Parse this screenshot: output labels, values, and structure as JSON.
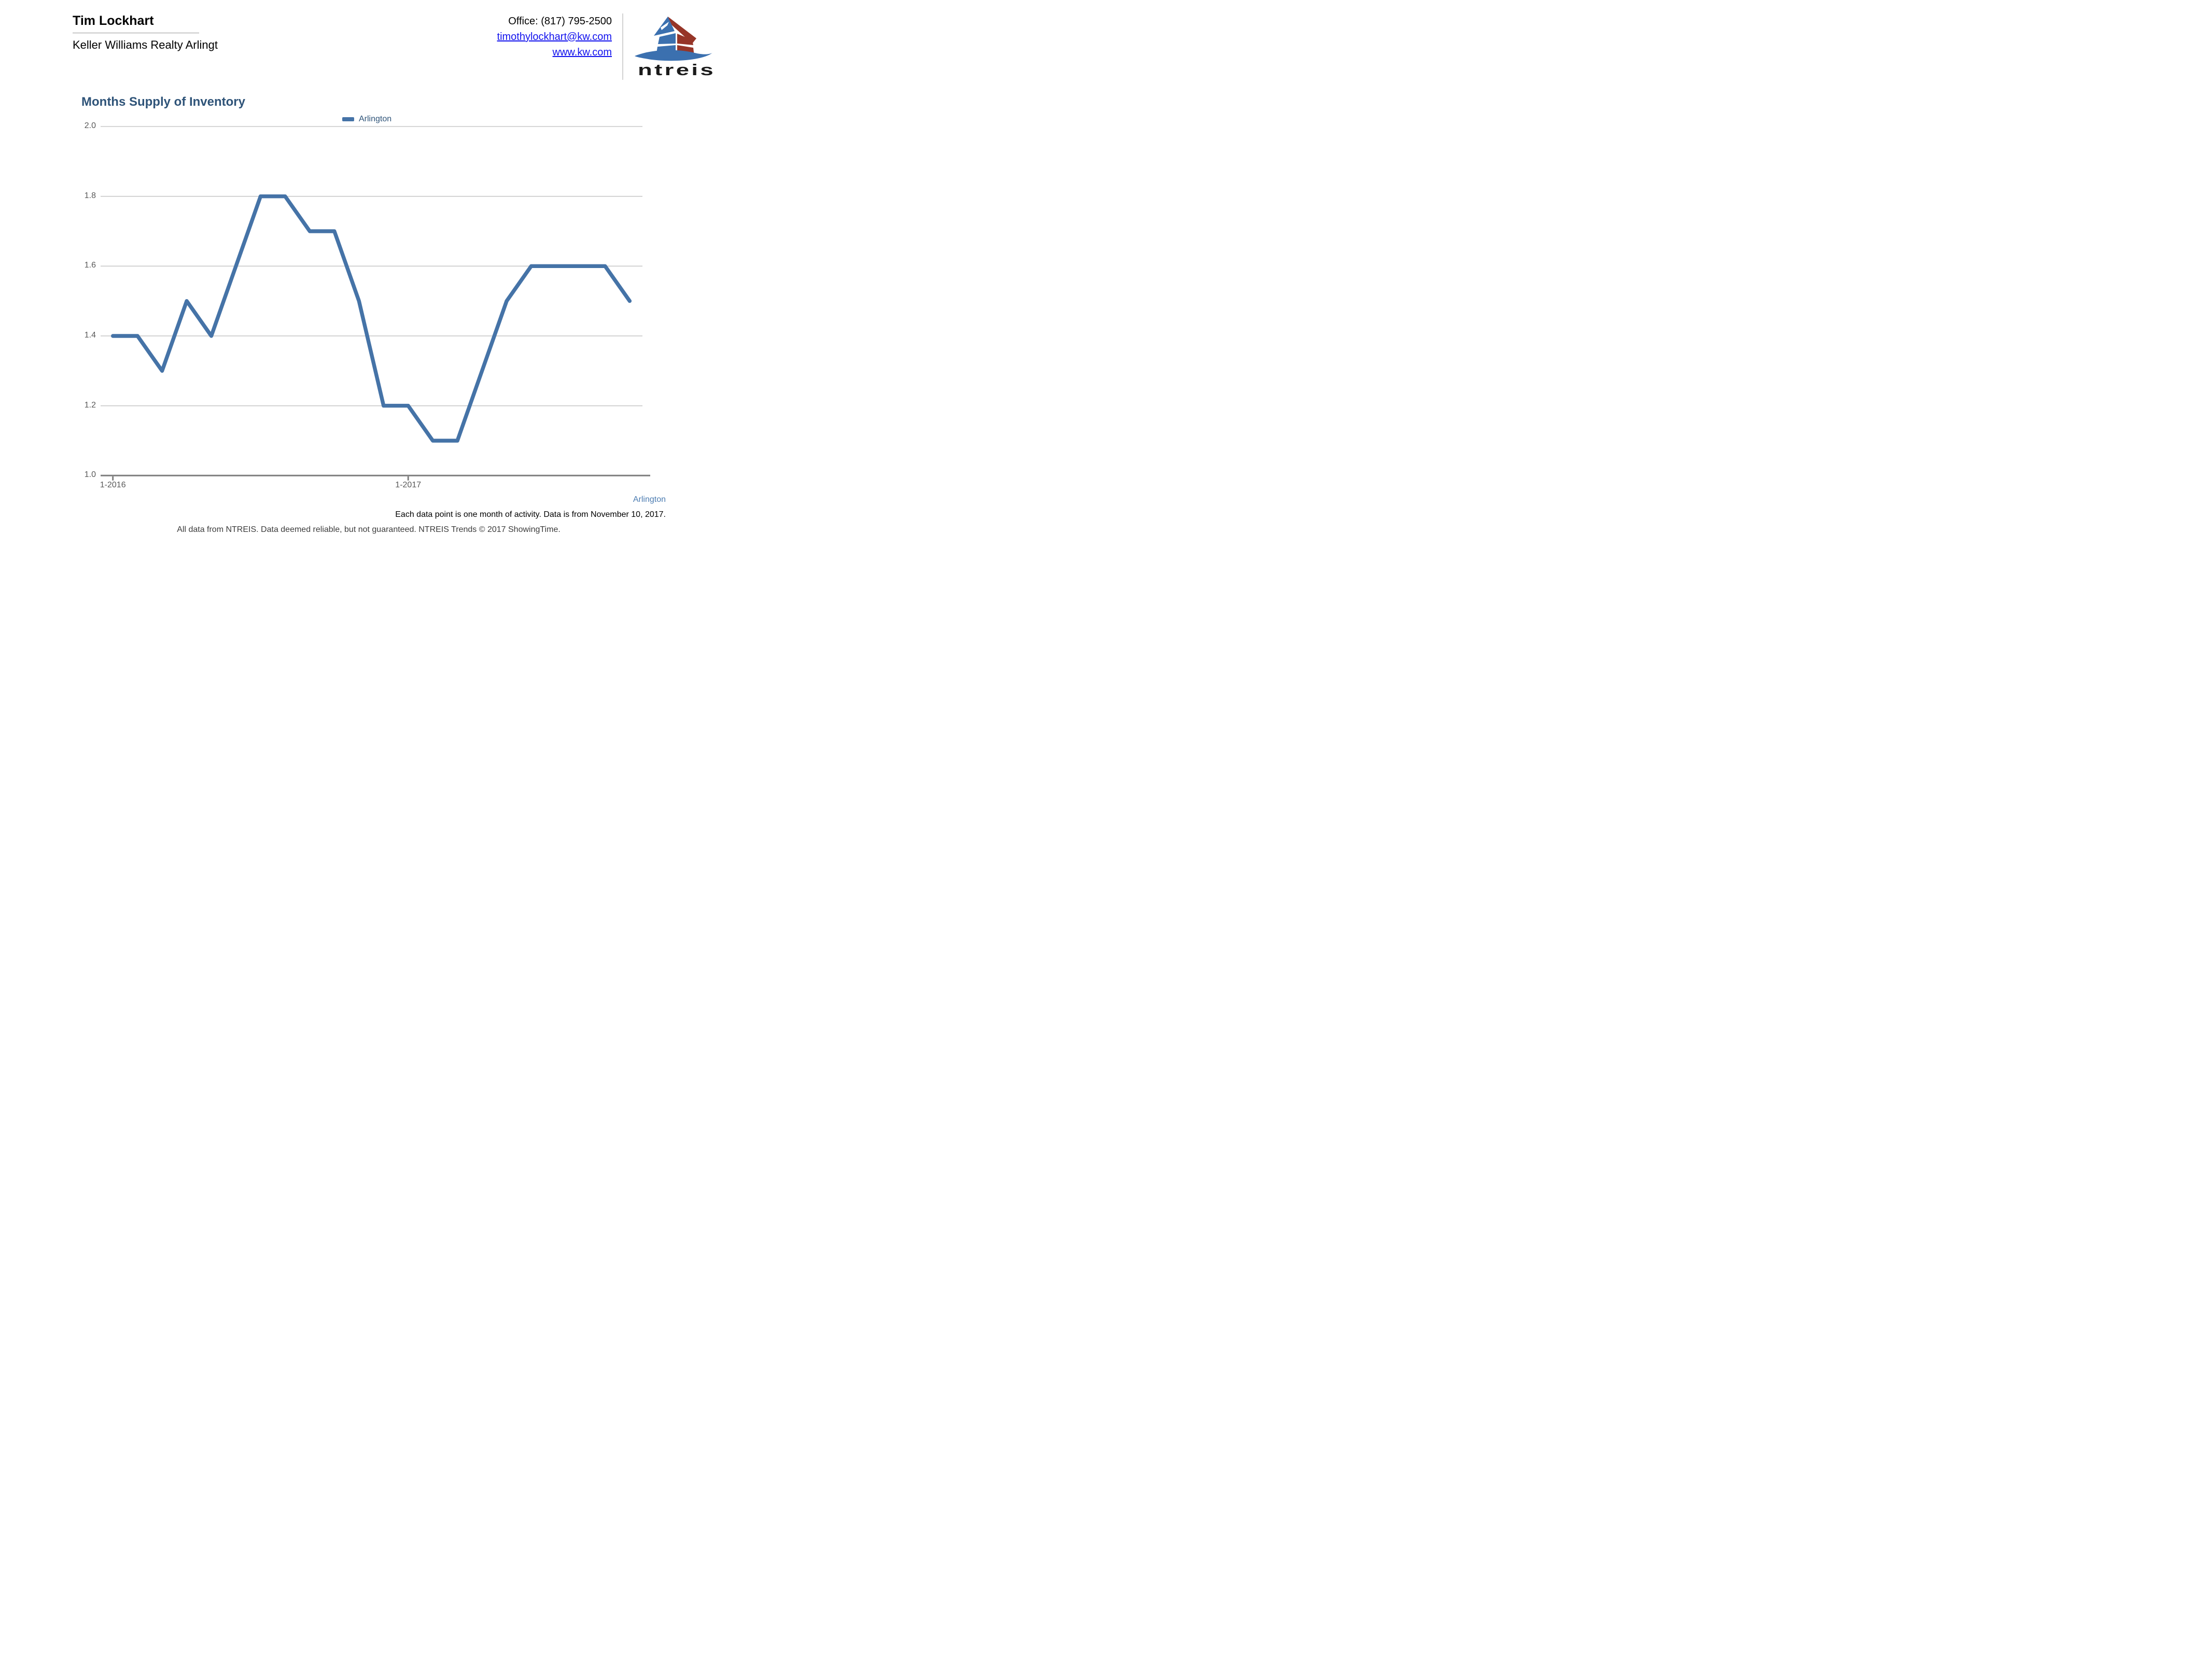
{
  "header": {
    "agent_name": "Tim Lockhart",
    "agency": "Keller Williams Realty Arlingt",
    "office_phone": "Office: (817) 795-2500",
    "email": "timothylockhart@kw.com",
    "website": "www.kw.com",
    "logo_text": "ntreis"
  },
  "chart": {
    "title": "Months Supply of Inventory",
    "legend_label": "Arlington"
  },
  "chart_data": {
    "type": "line",
    "title": "Months Supply of Inventory",
    "x": [
      "1-2016",
      "2-2016",
      "3-2016",
      "4-2016",
      "5-2016",
      "6-2016",
      "7-2016",
      "8-2016",
      "9-2016",
      "10-2016",
      "11-2016",
      "12-2016",
      "1-2017",
      "2-2017",
      "3-2017",
      "4-2017",
      "5-2017",
      "6-2017",
      "7-2017",
      "8-2017",
      "9-2017",
      "10-2017"
    ],
    "series": [
      {
        "name": "Arlington",
        "values": [
          1.4,
          1.4,
          1.3,
          1.5,
          1.4,
          1.6,
          1.8,
          1.8,
          1.7,
          1.7,
          1.5,
          1.2,
          1.2,
          1.1,
          1.1,
          1.3,
          1.5,
          1.6,
          1.6,
          1.6,
          1.6,
          1.5
        ]
      }
    ],
    "ylim": [
      1.0,
      2.0
    ],
    "yticks": [
      "2.0",
      "1.8",
      "1.6",
      "1.4",
      "1.2",
      "1.0"
    ],
    "xticks": [
      {
        "label": "1-2016",
        "month_index": 0
      },
      {
        "label": "1-2017",
        "month_index": 12
      }
    ],
    "grid": "horizontal",
    "legend_position": "top-center",
    "line_color": "#4573a7",
    "grid_color": "#c9c9c9",
    "axis_color": "#7f7f7f"
  },
  "footer": {
    "series_label": "Arlington",
    "note1": "Each data point is one month of activity. Data is from November 10, 2017.",
    "note2": "All data from NTREIS. Data deemed reliable, but not guaranteed. NTREIS Trends © 2017 ShowingTime."
  },
  "logo_colors": {
    "blue": "#3b70af",
    "red": "#963528"
  }
}
